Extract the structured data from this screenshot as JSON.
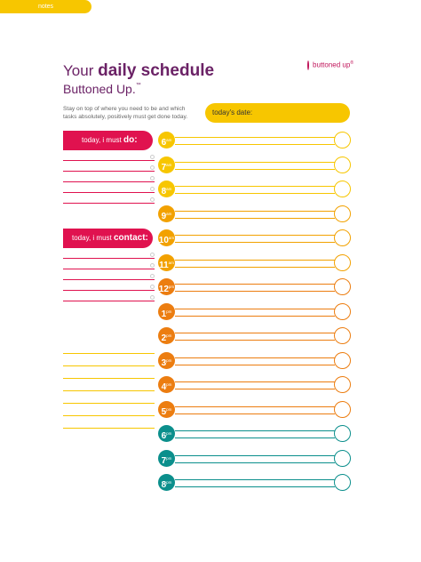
{
  "header": {
    "title_prefix": "Your",
    "title_main": "daily schedule",
    "subtitle": "Buttoned Up.",
    "trademark": "™",
    "description": "Stay on top of where you need to be and which tasks absolutely, positively must get done today."
  },
  "brand": {
    "name": "buttoned up",
    "registered": "®",
    "icon": "button-icon"
  },
  "date_field": {
    "label": "today's date:"
  },
  "todo_section": {
    "prefix": "today, i must",
    "emphasis": "do:",
    "rows": 5
  },
  "contact_section": {
    "prefix": "today, i must",
    "emphasis": "contact:",
    "rows": 5
  },
  "notes_section": {
    "label": "notes",
    "rows": 7
  },
  "schedule": [
    {
      "hour": "6",
      "suffix": "am"
    },
    {
      "hour": "7",
      "suffix": "am"
    },
    {
      "hour": "8",
      "suffix": "am"
    },
    {
      "hour": "9",
      "suffix": "am"
    },
    {
      "hour": "10",
      "suffix": "am"
    },
    {
      "hour": "11",
      "suffix": "am"
    },
    {
      "hour": "12",
      "suffix": "pm"
    },
    {
      "hour": "1",
      "suffix": "pm"
    },
    {
      "hour": "2",
      "suffix": "pm"
    },
    {
      "hour": "3",
      "suffix": "pm"
    },
    {
      "hour": "4",
      "suffix": "pm"
    },
    {
      "hour": "5",
      "suffix": "pm"
    },
    {
      "hour": "6",
      "suffix": "pm"
    },
    {
      "hour": "7",
      "suffix": "pm"
    },
    {
      "hour": "8",
      "suffix": "pm"
    }
  ],
  "colors": {
    "plum": "#6b2266",
    "crimson": "#e0124f",
    "yellow": "#f7c600",
    "amber": "#f2a100",
    "orange": "#ec7d10",
    "teal": "#0b8f8c"
  }
}
